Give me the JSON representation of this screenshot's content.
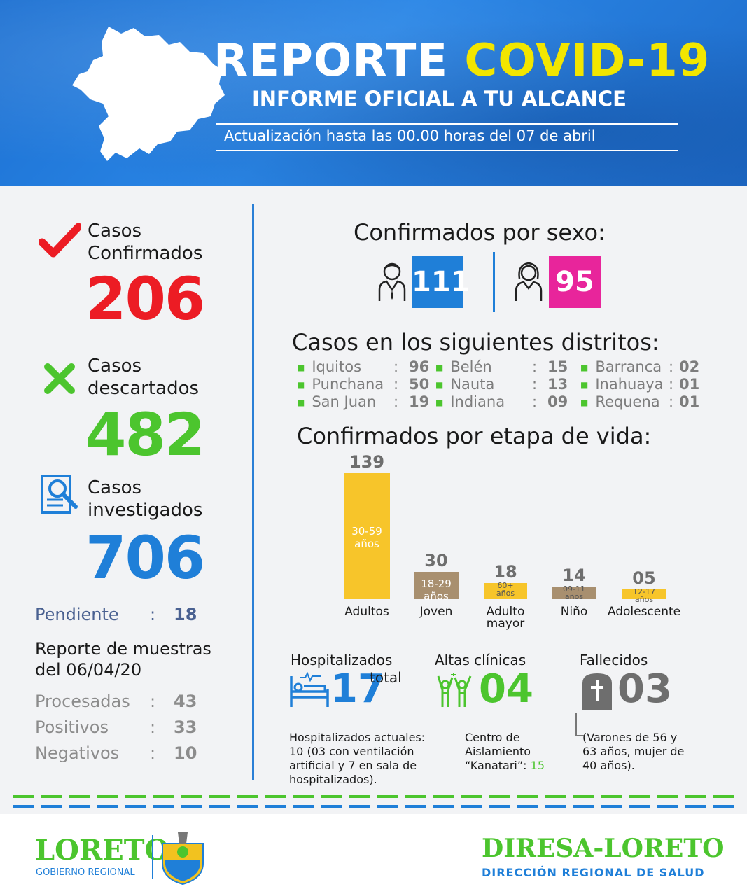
{
  "header": {
    "title_part1": "REPORTE",
    "title_part2": "COVID-19",
    "subtitle": "INFORME OFICIAL A TU ALCANCE",
    "update": "Actualización hasta las 00.00 horas del 07 de abril",
    "colors": {
      "background": "#1e72d4",
      "highlight": "#f2e600"
    }
  },
  "cases": {
    "confirmed": {
      "label1": "Casos",
      "label2": "Confirmados",
      "value": "206",
      "color": "#ec1c24",
      "icon": "check-icon"
    },
    "discarded": {
      "label1": "Casos",
      "label2": "descartados",
      "value": "482",
      "color": "#4cc52e",
      "icon": "x-icon"
    },
    "investigated": {
      "label1": "Casos",
      "label2": "investigados",
      "value": "706",
      "color": "#1f7fd8",
      "icon": "document-magnifier-icon"
    },
    "pending": {
      "label": "Pendiente",
      "sep": ":",
      "value": "18"
    }
  },
  "samples": {
    "title1": "Reporte de muestras",
    "title2": "del 06/04/20",
    "rows": [
      {
        "label": "Procesadas",
        "sep": ":",
        "value": "43"
      },
      {
        "label": "Positivos",
        "sep": ":",
        "value": "33"
      },
      {
        "label": "Negativos",
        "sep": ":",
        "value": "10"
      }
    ]
  },
  "by_sex": {
    "title": "Confirmados por sexo:",
    "male": {
      "value": "111",
      "color": "#1f7fd8",
      "icon": "man-icon"
    },
    "female": {
      "value": "95",
      "color": "#e8259b",
      "icon": "woman-icon"
    }
  },
  "districts": {
    "title": "Casos en los siguientes distritos:",
    "items": [
      {
        "name": "Iquitos",
        "sep": ":",
        "value": "96"
      },
      {
        "name": "Punchana",
        "sep": ":",
        "value": "50"
      },
      {
        "name": "San Juan",
        "sep": ":",
        "value": "19"
      },
      {
        "name": "Belén",
        "sep": ":",
        "value": "15"
      },
      {
        "name": "Nauta",
        "sep": ":",
        "value": "13"
      },
      {
        "name": "Indiana",
        "sep": ":",
        "value": "09"
      },
      {
        "name": "Barranca",
        "sep": ":",
        "value": "02"
      },
      {
        "name": "Inahuaya",
        "sep": ":",
        "value": "01"
      },
      {
        "name": "Requena",
        "sep": ":",
        "value": "01"
      }
    ]
  },
  "chart_data": {
    "type": "bar",
    "title": "Confirmados por etapa de vida:",
    "categories": [
      "Adultos",
      "Joven",
      "Adulto mayor",
      "Niño",
      "Adolescente"
    ],
    "values": [
      139,
      30,
      18,
      14,
      5
    ],
    "value_labels": [
      "139",
      "30",
      "18",
      "14",
      "05"
    ],
    "inner_labels": [
      [
        "30-59",
        "años"
      ],
      [
        "18-29",
        "años"
      ],
      [
        "60+",
        "años"
      ],
      [
        "09-11",
        "años"
      ],
      [
        "12-17",
        "años"
      ]
    ],
    "colors": [
      "#f7c52a",
      "#a88f6f",
      "#f7c52a",
      "#a88f6f",
      "#f7c52a"
    ],
    "ylim": [
      0,
      139
    ],
    "grid": false
  },
  "hospital": {
    "title": "Hospitalizados",
    "value": "17",
    "suffix": "total",
    "note1": "Hospitalizados actuales:",
    "note2": "10 (03 con ventilación",
    "note3": "artificial y 7 en sala de",
    "note4": "hospitalizados).",
    "icon": "hospital-bed-icon",
    "color": "#1f7fd8"
  },
  "discharges": {
    "title": "Altas clínicas",
    "value": "04",
    "note1": "Centro de",
    "note2": "Aislamiento",
    "note3": "“Kanatari”:",
    "note_value": "15",
    "icon": "celebrating-people-icon",
    "color": "#4cc52e"
  },
  "deaths": {
    "title": "Fallecidos",
    "value": "03",
    "note1": "(Varones de 56 y",
    "note2": "63 años, mujer de",
    "note3": "40 años).",
    "icon": "cross-tomb-icon",
    "color": "#6e6e6e"
  },
  "footer": {
    "left_logo": "LORETO",
    "left_sub": "GOBIERNO REGIONAL",
    "right_logo": "DIRESA-LORETO",
    "right_sub": "DIRECCIÓN REGIONAL DE SALUD",
    "colors": {
      "green": "#4cc52e",
      "blue": "#1f7fd8"
    }
  }
}
